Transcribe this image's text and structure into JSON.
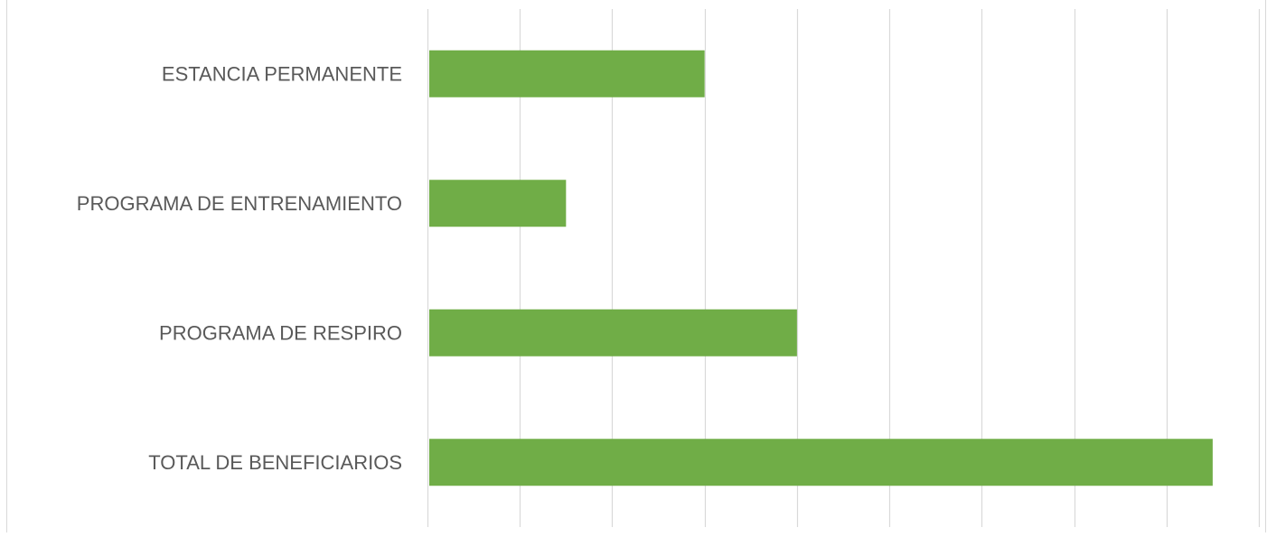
{
  "chart_data": {
    "type": "bar",
    "orientation": "horizontal",
    "categories": [
      "ESTANCIA PERMANENTE",
      "PROGRAMA DE ENTRENAMIENTO",
      "PROGRAMA DE RESPIRO",
      "TOTAL DE BENEFICIARIOS"
    ],
    "values": [
      3,
      1.5,
      4,
      8.5
    ],
    "xlim": [
      0,
      9
    ],
    "grid": true,
    "bar_color": "#70ad47",
    "gridline_color": "#d9d9d9",
    "label_color": "#595959"
  }
}
